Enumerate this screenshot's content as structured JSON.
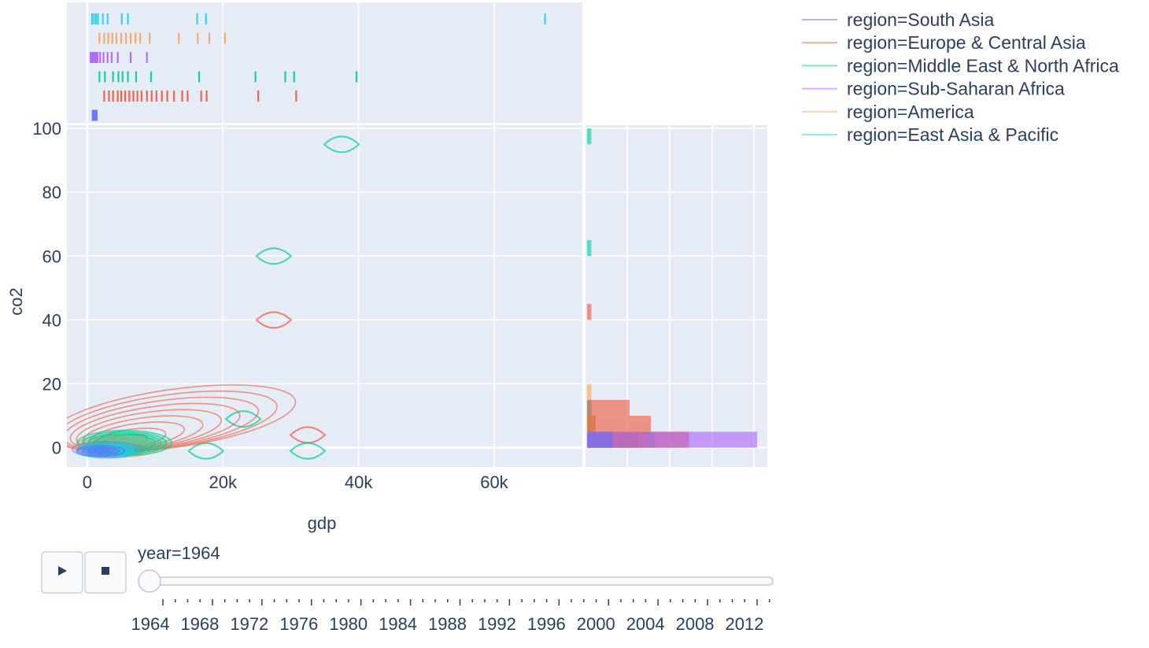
{
  "chart_data": {
    "type": "scatter",
    "subtype": "density-contour with marginal rug (top) and histogram (right), animated by year",
    "xlabel": "gdp",
    "ylabel": "co2",
    "xlim": [
      -3000,
      73000
    ],
    "ylim": [
      -6,
      101
    ],
    "x_ticks": [
      {
        "value": 0,
        "label": "0"
      },
      {
        "value": 20000,
        "label": "20k"
      },
      {
        "value": 40000,
        "label": "40k"
      },
      {
        "value": 60000,
        "label": "60k"
      }
    ],
    "y_ticks": [
      {
        "value": 0,
        "label": "0"
      },
      {
        "value": 20,
        "label": "20"
      },
      {
        "value": 40,
        "label": "40"
      },
      {
        "value": 60,
        "label": "60"
      },
      {
        "value": 80,
        "label": "80"
      },
      {
        "value": 100,
        "label": "100"
      }
    ],
    "grid": true,
    "legend": {
      "position": "top-right"
    },
    "series": [
      {
        "name": "region=South Asia",
        "color": "#636efa",
        "rug_gdp": [
          800,
          1000,
          1200,
          1400
        ]
      },
      {
        "name": "region=Europe & Central Asia",
        "color": "#ef553b",
        "rug_gdp": [
          2500,
          3200,
          3800,
          4500,
          5000,
          5600,
          6200,
          6800,
          7400,
          8000,
          8800,
          9500,
          10200,
          11000,
          11800,
          12800,
          14000,
          14800,
          16800,
          17600,
          25200,
          30800
        ],
        "contours": [
          {
            "gdp": 27500,
            "co2": 40
          },
          {
            "gdp": 32500,
            "co2": 4
          }
        ]
      },
      {
        "name": "region=Middle East & North Africa",
        "color": "#00cc96",
        "rug_gdp": [
          1800,
          2600,
          3800,
          4600,
          5200,
          6000,
          7200,
          9400,
          16500,
          24800,
          29200,
          30500,
          39700
        ],
        "contours": [
          {
            "gdp": 37500,
            "co2": 95
          },
          {
            "gdp": 27500,
            "co2": 60
          },
          {
            "gdp": 23000,
            "co2": 9
          },
          {
            "gdp": 17500,
            "co2": -1
          },
          {
            "gdp": 32500,
            "co2": -1
          }
        ]
      },
      {
        "name": "region=Sub-Saharan Africa",
        "color": "#ab63fa",
        "rug_gdp": [
          500,
          700,
          900,
          1100,
          1300,
          1500,
          1900,
          2400,
          3000,
          3600,
          4500,
          6400,
          8800
        ]
      },
      {
        "name": "region=America",
        "color": "#ffa15a",
        "rug_gdp": [
          1800,
          2500,
          3100,
          3700,
          4300,
          5000,
          5700,
          6400,
          7100,
          7800,
          9200,
          13500,
          16300,
          18000,
          20300
        ]
      },
      {
        "name": "region=East Asia & Pacific",
        "color": "#19d3f3",
        "rug_gdp": [
          700,
          1000,
          1300,
          1600,
          2300,
          3000,
          5100,
          6000,
          16200,
          17500,
          67500
        ]
      }
    ],
    "histogram_co2": [
      {
        "bin": [
          0,
          5
        ],
        "counts": {
          "region=Sub-Saharan Africa": 40,
          "region=Europe & Central Asia": 24,
          "region=East Asia & Pacific": 16,
          "region=America": 14,
          "region=Middle East & North Africa": 12,
          "region=South Asia": 6
        }
      },
      {
        "bin": [
          5,
          10
        ],
        "counts": {
          "region=Europe & Central Asia": 15,
          "region=America": 2,
          "region=Middle East & North Africa": 2,
          "region=East Asia & Pacific": 1
        }
      },
      {
        "bin": [
          10,
          15
        ],
        "counts": {
          "region=Europe & Central Asia": 10,
          "region=Middle East & North Africa": 1
        }
      },
      {
        "bin": [
          15,
          20
        ],
        "counts": {
          "region=America": 1
        }
      },
      {
        "bin": [
          40,
          45
        ],
        "counts": {
          "region=Europe & Central Asia": 1
        }
      },
      {
        "bin": [
          60,
          65
        ],
        "counts": {
          "region=Middle East & North Africa": 1
        }
      },
      {
        "bin": [
          95,
          100
        ],
        "counts": {
          "region=Middle East & North Africa": 1
        }
      }
    ],
    "animation": {
      "current_label": "year=1964",
      "current_year": 1964,
      "years": [
        1964,
        1965,
        1966,
        1967,
        1968,
        1969,
        1970,
        1971,
        1972,
        1973,
        1974,
        1975,
        1976,
        1977,
        1978,
        1979,
        1980,
        1981,
        1982,
        1983,
        1984,
        1985,
        1986,
        1987,
        1988,
        1989,
        1990,
        1991,
        1992,
        1993,
        1994,
        1995,
        1996,
        1997,
        1998,
        1999,
        2000,
        2001,
        2002,
        2003,
        2004,
        2005,
        2006,
        2007,
        2008,
        2009,
        2010,
        2011,
        2012,
        2013
      ],
      "labeled_years": [
        1964,
        1968,
        1972,
        1976,
        1980,
        1984,
        1988,
        1992,
        1996,
        2000,
        2004,
        2008,
        2012
      ],
      "play_icon": "play-icon",
      "stop_icon": "stop-icon"
    }
  }
}
